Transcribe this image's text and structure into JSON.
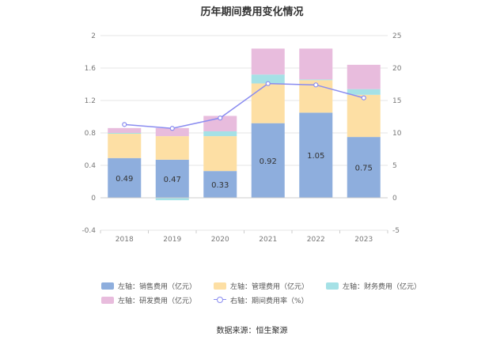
{
  "chart_data": {
    "type": "bar",
    "title": "历年期间费用变化情况",
    "categories": [
      "2018",
      "2019",
      "2020",
      "2021",
      "2022",
      "2023"
    ],
    "left_axis": {
      "ylim": [
        -0.4,
        2
      ],
      "ticks": [
        "-0.4",
        "0",
        "0.4",
        "0.8",
        "1.2",
        "1.6",
        "2"
      ]
    },
    "right_axis": {
      "ylim": [
        -5,
        25
      ],
      "ticks": [
        "-5",
        "0",
        "5",
        "10",
        "15",
        "20",
        "25"
      ]
    },
    "series": [
      {
        "name": "左轴：销售费用（亿元）",
        "axis": "left",
        "color": "#8eaedd",
        "values": [
          0.49,
          0.47,
          0.33,
          0.92,
          1.05,
          0.75
        ],
        "labels": [
          "0.49",
          "0.47",
          "0.33",
          "0.92",
          "1.05",
          "0.75"
        ]
      },
      {
        "name": "左轴：管理费用（亿元）",
        "axis": "left",
        "color": "#fddfa4",
        "values": [
          0.3,
          0.29,
          0.43,
          0.49,
          0.4,
          0.52
        ]
      },
      {
        "name": "左轴：财务费用（亿元）",
        "axis": "left",
        "color": "#a5e1e6",
        "values": [
          0.01,
          -0.03,
          0.06,
          0.11,
          0.01,
          0.07
        ]
      },
      {
        "name": "左轴：研发费用（亿元）",
        "axis": "left",
        "color": "#e8bcdd",
        "values": [
          0.06,
          0.1,
          0.19,
          0.32,
          0.38,
          0.3
        ]
      },
      {
        "name": "右轴：期间费用率（%）",
        "axis": "right",
        "type": "line",
        "color": "#8a8cf0",
        "values": [
          11.3,
          10.7,
          12.3,
          17.6,
          17.4,
          15.4
        ]
      }
    ],
    "grid": true,
    "legend_position": "bottom"
  },
  "source_text": "数据来源：恒生聚源"
}
